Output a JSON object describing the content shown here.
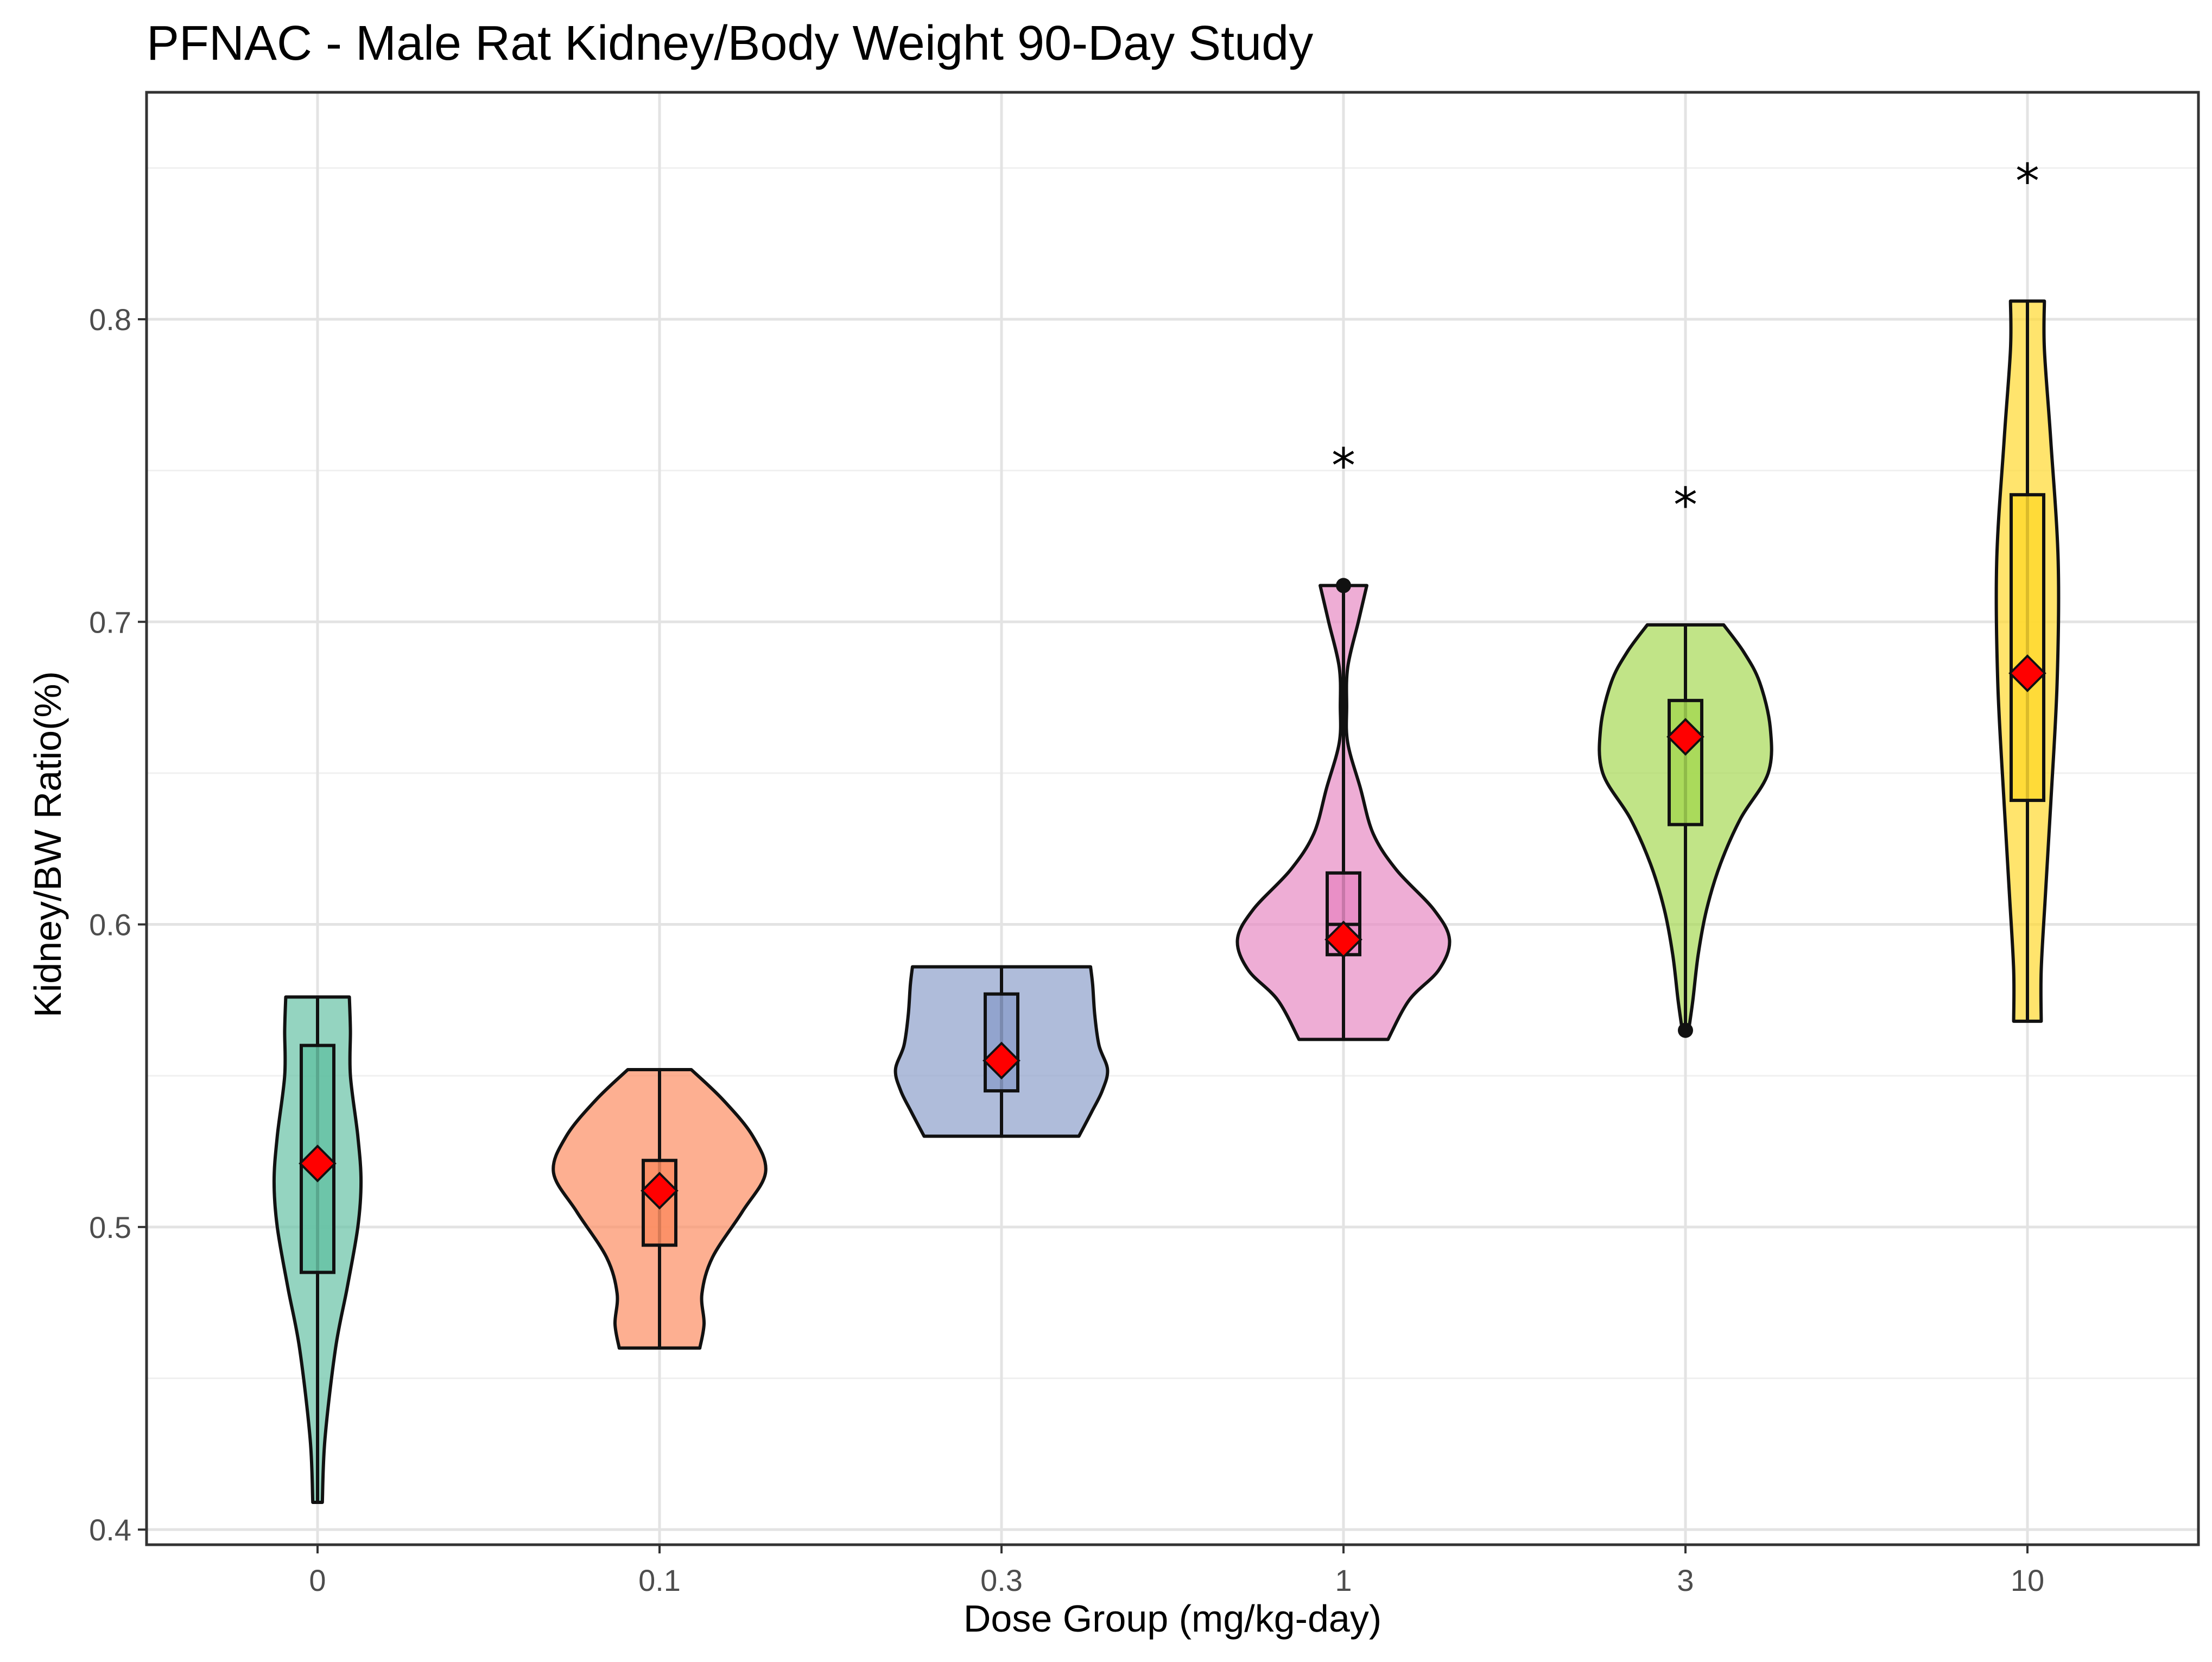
{
  "chart_data": {
    "type": "violin",
    "title": "PFNAC - Male Rat Kidney/Body Weight 90-Day Study",
    "xlabel": "Dose Group (mg/kg-day)",
    "ylabel": "Kidney/BW Ratio(%)",
    "ylim": [
      0.395,
      0.875
    ],
    "yticks": [
      0.4,
      0.5,
      0.6,
      0.7,
      0.8
    ],
    "ytick_labels": [
      "0.4",
      "0.5",
      "0.6",
      "0.7",
      "0.8"
    ],
    "y_minor_ticks": [
      0.45,
      0.55,
      0.65,
      0.75,
      0.85
    ],
    "significance_marker": "*",
    "mean_marker_color": "#ff0000",
    "groups": [
      {
        "category": "0",
        "color": "#66c2a5",
        "min": 0.409,
        "q1": 0.485,
        "median": 0.521,
        "q3": 0.56,
        "max": 0.576,
        "mean": 0.521,
        "significant": false,
        "outliers": [],
        "density": [
          [
            0.409,
            0.045
          ],
          [
            0.43,
            0.07
          ],
          [
            0.46,
            0.17
          ],
          [
            0.48,
            0.28
          ],
          [
            0.5,
            0.38
          ],
          [
            0.515,
            0.41
          ],
          [
            0.53,
            0.38
          ],
          [
            0.55,
            0.31
          ],
          [
            0.565,
            0.31
          ],
          [
            0.576,
            0.3
          ]
        ]
      },
      {
        "category": "0.1",
        "color": "#fc8d62",
        "min": 0.46,
        "q1": 0.494,
        "median": 0.512,
        "q3": 0.522,
        "max": 0.552,
        "mean": 0.512,
        "significant": false,
        "outliers": [],
        "density": [
          [
            0.46,
            0.38
          ],
          [
            0.468,
            0.42
          ],
          [
            0.478,
            0.4
          ],
          [
            0.49,
            0.5
          ],
          [
            0.505,
            0.78
          ],
          [
            0.518,
            1.0
          ],
          [
            0.53,
            0.88
          ],
          [
            0.542,
            0.6
          ],
          [
            0.552,
            0.3
          ]
        ]
      },
      {
        "category": "0.3",
        "color": "#8da0cb",
        "min": 0.53,
        "q1": 0.545,
        "median": 0.555,
        "q3": 0.577,
        "max": 0.586,
        "mean": 0.555,
        "significant": false,
        "outliers": [],
        "density": [
          [
            0.53,
            0.73
          ],
          [
            0.538,
            0.85
          ],
          [
            0.545,
            0.95
          ],
          [
            0.552,
            1.0
          ],
          [
            0.56,
            0.92
          ],
          [
            0.57,
            0.88
          ],
          [
            0.58,
            0.86
          ],
          [
            0.586,
            0.84
          ]
        ]
      },
      {
        "category": "1",
        "color": "#e78ac3",
        "min": 0.562,
        "q1": 0.59,
        "median": 0.6,
        "q3": 0.617,
        "max": 0.712,
        "mean": 0.595,
        "significant": true,
        "outliers": [
          0.712
        ],
        "density": [
          [
            0.562,
            0.42
          ],
          [
            0.575,
            0.62
          ],
          [
            0.585,
            0.9
          ],
          [
            0.595,
            1.0
          ],
          [
            0.605,
            0.85
          ],
          [
            0.618,
            0.5
          ],
          [
            0.63,
            0.28
          ],
          [
            0.645,
            0.16
          ],
          [
            0.66,
            0.04
          ],
          [
            0.672,
            0.03
          ],
          [
            0.685,
            0.04
          ],
          [
            0.7,
            0.14
          ],
          [
            0.712,
            0.22
          ]
        ]
      },
      {
        "category": "3",
        "color": "#a6d854",
        "min": 0.565,
        "q1": 0.633,
        "median": 0.663,
        "q3": 0.674,
        "max": 0.699,
        "mean": 0.662,
        "significant": true,
        "outliers": [
          0.565
        ],
        "density": [
          [
            0.565,
            0.03
          ],
          [
            0.575,
            0.07
          ],
          [
            0.59,
            0.12
          ],
          [
            0.605,
            0.2
          ],
          [
            0.62,
            0.33
          ],
          [
            0.635,
            0.52
          ],
          [
            0.65,
            0.78
          ],
          [
            0.665,
            0.8
          ],
          [
            0.68,
            0.7
          ],
          [
            0.69,
            0.55
          ],
          [
            0.699,
            0.36
          ]
        ]
      },
      {
        "category": "10",
        "color": "#ffd92f",
        "min": 0.568,
        "q1": 0.641,
        "median": 0.683,
        "q3": 0.742,
        "max": 0.806,
        "mean": 0.683,
        "significant": true,
        "outliers": [],
        "density": [
          [
            0.568,
            0.13
          ],
          [
            0.585,
            0.13
          ],
          [
            0.61,
            0.17
          ],
          [
            0.64,
            0.22
          ],
          [
            0.68,
            0.28
          ],
          [
            0.72,
            0.29
          ],
          [
            0.76,
            0.22
          ],
          [
            0.79,
            0.16
          ],
          [
            0.806,
            0.16
          ]
        ]
      }
    ]
  }
}
